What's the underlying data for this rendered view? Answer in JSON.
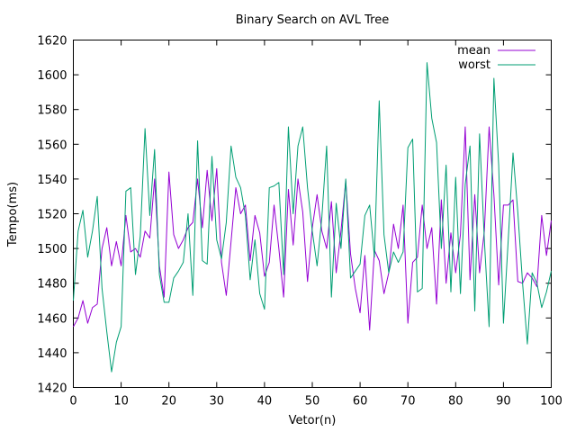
{
  "chart_data": {
    "type": "line",
    "title": "Binary Search on AVL Tree",
    "xlabel": "Vetor(n)",
    "ylabel": "Tempo(ms)",
    "xlim": [
      0,
      100
    ],
    "ylim": [
      1420,
      1620
    ],
    "x_ticks": [
      0,
      10,
      20,
      30,
      40,
      50,
      60,
      70,
      80,
      90,
      100
    ],
    "y_ticks": [
      1420,
      1440,
      1460,
      1480,
      1500,
      1520,
      1540,
      1560,
      1580,
      1600,
      1620
    ],
    "grid": false,
    "legend_position": "top-right",
    "x": [
      0,
      1,
      2,
      3,
      4,
      5,
      6,
      7,
      8,
      9,
      10,
      11,
      12,
      13,
      14,
      15,
      16,
      17,
      18,
      19,
      20,
      21,
      22,
      23,
      24,
      25,
      26,
      27,
      28,
      29,
      30,
      31,
      32,
      33,
      34,
      35,
      36,
      37,
      38,
      39,
      40,
      41,
      42,
      43,
      44,
      45,
      46,
      47,
      48,
      49,
      50,
      51,
      52,
      53,
      54,
      55,
      56,
      57,
      58,
      59,
      60,
      61,
      62,
      63,
      64,
      65,
      66,
      67,
      68,
      69,
      70,
      71,
      72,
      73,
      74,
      75,
      76,
      77,
      78,
      79,
      80,
      81,
      82,
      83,
      84,
      85,
      86,
      87,
      88,
      89,
      90,
      91,
      92,
      93,
      94,
      95,
      96,
      97,
      98,
      99,
      100
    ],
    "series": [
      {
        "name": "mean",
        "color": "#9400d3",
        "values": [
          1455,
          1460,
          1470,
          1457,
          1466,
          1468,
          1500,
          1512,
          1490,
          1504,
          1490,
          1519,
          1498,
          1500,
          1495,
          1510,
          1506,
          1540,
          1490,
          1472,
          1544,
          1508,
          1500,
          1505,
          1512,
          1515,
          1540,
          1512,
          1545,
          1516,
          1546,
          1492,
          1473,
          1504,
          1535,
          1520,
          1525,
          1493,
          1519,
          1509,
          1484,
          1492,
          1525,
          1500,
          1472,
          1534,
          1502,
          1540,
          1521,
          1481,
          1512,
          1531,
          1510,
          1500,
          1527,
          1486,
          1510,
          1539,
          1497,
          1477,
          1463,
          1496,
          1453,
          1499,
          1493,
          1474,
          1486,
          1514,
          1500,
          1525,
          1457,
          1492,
          1495,
          1525,
          1500,
          1512,
          1468,
          1528,
          1480,
          1509,
          1486,
          1508,
          1570,
          1482,
          1531,
          1486,
          1510,
          1570,
          1531,
          1479,
          1525,
          1525,
          1528,
          1481,
          1480,
          1486,
          1483,
          1478,
          1519,
          1496,
          1516
        ]
      },
      {
        "name": "worst",
        "color": "#009e73",
        "values": [
          1470,
          1510,
          1522,
          1495,
          1510,
          1530,
          1477,
          1452,
          1429,
          1446,
          1455,
          1533,
          1535,
          1485,
          1507,
          1569,
          1519,
          1557,
          1485,
          1469,
          1469,
          1483,
          1487,
          1492,
          1520,
          1473,
          1562,
          1493,
          1491,
          1553,
          1505,
          1494,
          1515,
          1559,
          1541,
          1535,
          1519,
          1482,
          1505,
          1474,
          1465,
          1535,
          1536,
          1538,
          1485,
          1570,
          1520,
          1559,
          1570,
          1535,
          1510,
          1490,
          1518,
          1559,
          1472,
          1526,
          1500,
          1540,
          1483,
          1487,
          1491,
          1519,
          1525,
          1495,
          1585,
          1508,
          1486,
          1498,
          1492,
          1498,
          1558,
          1563,
          1475,
          1477,
          1607,
          1575,
          1561,
          1500,
          1548,
          1475,
          1541,
          1474,
          1537,
          1559,
          1464,
          1566,
          1505,
          1455,
          1598,
          1548,
          1457,
          1505,
          1555,
          1521,
          1480,
          1445,
          1486,
          1480,
          1466,
          1475,
          1487
        ]
      }
    ]
  }
}
